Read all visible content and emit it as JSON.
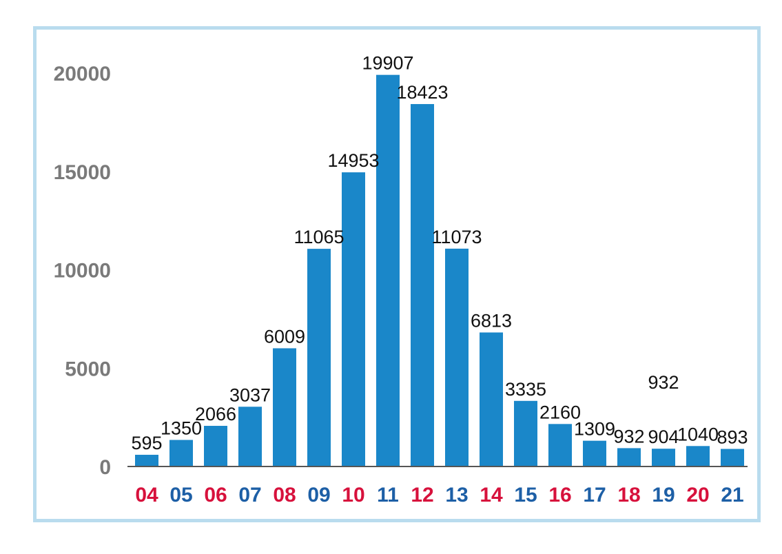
{
  "chart_data": {
    "type": "bar",
    "categories": [
      "04",
      "05",
      "06",
      "07",
      "08",
      "09",
      "10",
      "11",
      "12",
      "13",
      "14",
      "15",
      "16",
      "17",
      "18",
      "19",
      "20",
      "21"
    ],
    "values": [
      595,
      1350,
      2066,
      3037,
      6009,
      11065,
      14953,
      19907,
      18423,
      11073,
      6813,
      3335,
      2160,
      1309,
      932,
      904,
      1040,
      893
    ],
    "data_labels": [
      "595",
      "1350",
      "2066",
      "3037",
      "6009",
      "11065",
      "14953",
      "19907",
      "18423",
      "11073",
      "6813",
      "3335",
      "2160",
      "1309",
      "932",
      "904",
      "1040",
      "893"
    ],
    "extra_annotation": "932",
    "y_ticks": [
      "0",
      "5000",
      "10000",
      "15000",
      "20000"
    ],
    "ylim": [
      0,
      20000
    ],
    "title": "",
    "xlabel": "",
    "ylabel": "",
    "grid": false,
    "legend": "none",
    "bar_color": "#1a87c9",
    "category_colors": [
      "#d7113c",
      "#1d5fa6",
      "#d7113c",
      "#1d5fa6",
      "#d7113c",
      "#1d5fa6",
      "#d7113c",
      "#1d5fa6",
      "#d7113c",
      "#1d5fa6",
      "#d7113c",
      "#1d5fa6",
      "#d7113c",
      "#1d5fa6",
      "#d7113c",
      "#1d5fa6",
      "#d7113c",
      "#1d5fa6"
    ],
    "frame_color": "#b9dcee",
    "axis_color": "#555555",
    "ytick_color": "#7a7a7a"
  }
}
